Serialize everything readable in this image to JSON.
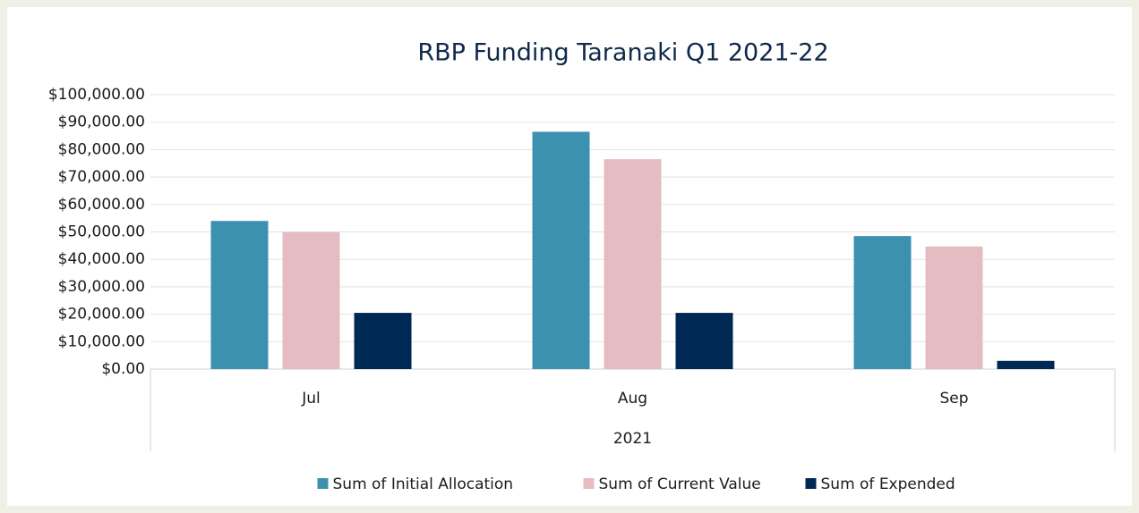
{
  "chart_data": {
    "type": "bar",
    "title": "RBP Funding Taranaki Q1 2021-22",
    "categories": [
      "Jul",
      "Aug",
      "Sep"
    ],
    "category_group": "2021",
    "series": [
      {
        "name": "Sum of Initial Allocation",
        "color": "#3d91b0",
        "values": [
          54000,
          86500,
          48500
        ]
      },
      {
        "name": "Sum of Current Value",
        "color": "#e5bcc1",
        "values": [
          50000,
          76500,
          44700
        ]
      },
      {
        "name": "Sum of Expended",
        "color": "#002855",
        "values": [
          20500,
          20500,
          3000
        ]
      }
    ],
    "ylim": [
      0,
      100000
    ],
    "yticks": [
      {
        "value": 0,
        "label": "$0.00"
      },
      {
        "value": 10000,
        "label": "$10,000.00"
      },
      {
        "value": 20000,
        "label": "$20,000.00"
      },
      {
        "value": 30000,
        "label": "$30,000.00"
      },
      {
        "value": 40000,
        "label": "$40,000.00"
      },
      {
        "value": 50000,
        "label": "$50,000.00"
      },
      {
        "value": 60000,
        "label": "$60,000.00"
      },
      {
        "value": 70000,
        "label": "$70,000.00"
      },
      {
        "value": 80000,
        "label": "$80,000.00"
      },
      {
        "value": 90000,
        "label": "$90,000.00"
      },
      {
        "value": 100000,
        "label": "$100,000.00"
      }
    ],
    "grid": true,
    "legend": "bottom"
  }
}
